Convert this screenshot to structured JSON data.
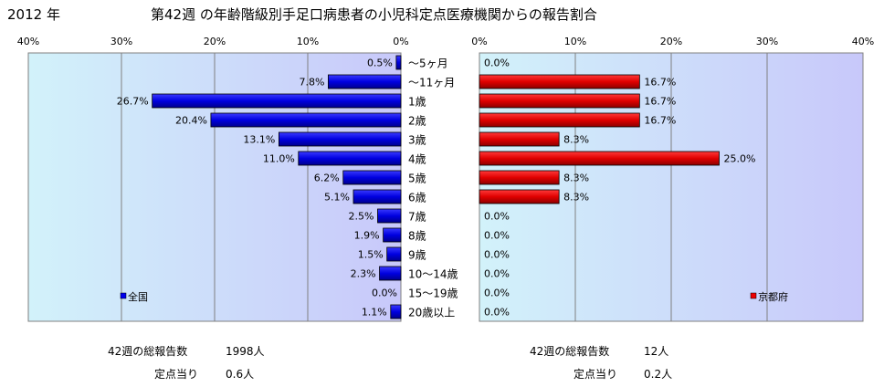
{
  "header": {
    "year_label": "2012 年",
    "title": "第42週 の年齢階級別手足口病患者の小児科定点医療機関からの報告割合"
  },
  "chart_data": {
    "type": "bar",
    "orientation": "horizontal",
    "categories": [
      "～5ヶ月",
      "～11ヶ月",
      "1歳",
      "2歳",
      "3歳",
      "4歳",
      "5歳",
      "6歳",
      "7歳",
      "8歳",
      "9歳",
      "10～14歳",
      "15～19歳",
      "20歳以上"
    ],
    "xlim": [
      0,
      40
    ],
    "x_ticks": [
      "0%",
      "10%",
      "20%",
      "30%",
      "40%"
    ],
    "grid": true,
    "series": [
      {
        "name": "全国",
        "side": "left",
        "color": "#0000ee",
        "values": [
          0.5,
          7.8,
          26.7,
          20.4,
          13.1,
          11.0,
          6.2,
          5.1,
          2.5,
          1.9,
          1.5,
          2.3,
          0.0,
          1.1
        ],
        "labels": [
          "0.5%",
          "7.8%",
          "26.7%",
          "20.4%",
          "13.1%",
          "11.0%",
          "6.2%",
          "5.1%",
          "2.5%",
          "1.9%",
          "1.5%",
          "2.3%",
          "0.0%",
          "1.1%"
        ],
        "legend_position": "bottom-left"
      },
      {
        "name": "京都府",
        "side": "right",
        "color": "#ee0000",
        "values": [
          0.0,
          16.7,
          16.7,
          16.7,
          8.3,
          25.0,
          8.3,
          8.3,
          0.0,
          0.0,
          0.0,
          0.0,
          0.0,
          0.0
        ],
        "labels": [
          "0.0%",
          "16.7%",
          "16.7%",
          "16.7%",
          "8.3%",
          "25.0%",
          "8.3%",
          "8.3%",
          "0.0%",
          "0.0%",
          "0.0%",
          "0.0%",
          "0.0%",
          "0.0%"
        ],
        "legend_position": "bottom-right"
      }
    ]
  },
  "footer": {
    "national": {
      "total_label": "42週の総報告数",
      "total_value": "1998人",
      "per_label": "定点当り",
      "per_value": "0.6人"
    },
    "kyoto": {
      "total_label": "42週の総報告数",
      "total_value": "12人",
      "per_label": "定点当り",
      "per_value": "0.2人"
    }
  }
}
